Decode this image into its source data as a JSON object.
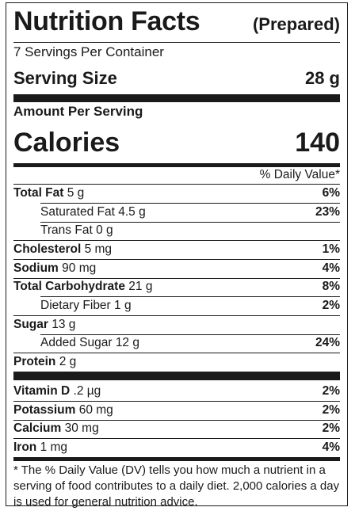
{
  "header": {
    "title": "Nutrition Facts",
    "subtitle": "(Prepared)",
    "servings_per_container": "7 Servings Per Container",
    "serving_size_label": "Serving Size",
    "serving_size_value": "28 g"
  },
  "calories": {
    "amount_per_serving": "Amount Per Serving",
    "label": "Calories",
    "value": "140"
  },
  "daily_value_header": "% Daily Value*",
  "nutrients": [
    {
      "name": "Total Fat",
      "amount": "5 g",
      "dv": "6%"
    },
    {
      "name": "Saturated Fat",
      "amount": "4.5 g",
      "dv": "23%"
    },
    {
      "name": "Trans Fat",
      "amount": "0 g",
      "dv": ""
    },
    {
      "name": "Cholesterol",
      "amount": "5 mg",
      "dv": "1%"
    },
    {
      "name": "Sodium",
      "amount": "90 mg",
      "dv": "4%"
    },
    {
      "name": "Total Carbohydrate",
      "amount": "21 g",
      "dv": "8%"
    },
    {
      "name": "Dietary Fiber",
      "amount": "1 g",
      "dv": "2%"
    },
    {
      "name": "Sugar",
      "amount": "13 g",
      "dv": ""
    },
    {
      "name": "Added Sugar",
      "amount": "12 g",
      "dv": "24%"
    },
    {
      "name": "Protein",
      "amount": "2 g",
      "dv": ""
    }
  ],
  "vitamins": [
    {
      "name": "Vitamin D",
      "amount": ".2 µg",
      "dv": "2%"
    },
    {
      "name": "Potassium",
      "amount": "60 mg",
      "dv": "2%"
    },
    {
      "name": "Calcium",
      "amount": "30 mg",
      "dv": "2%"
    },
    {
      "name": "Iron",
      "amount": "1 mg",
      "dv": "4%"
    }
  ],
  "footnote": "* The % Daily Value (DV) tells you how much a nutrient in a serving of food contributes to a daily diet. 2,000 calories a day is used for general nutrition advice."
}
